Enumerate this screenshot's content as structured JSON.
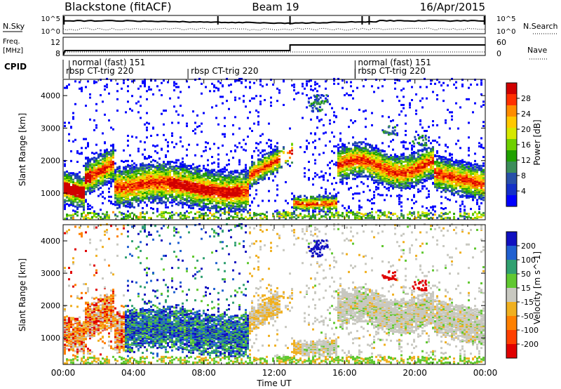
{
  "header": {
    "station": "Blackstone (fitACF)",
    "beam": "Beam 19",
    "date": "16/Apr/2015"
  },
  "status_panels": {
    "nsky_label": "N.Sky",
    "nsky_ticks": [
      "10^5",
      "10^0"
    ],
    "nsearch_label": "N.Search",
    "freq_label_line1": "Freq.",
    "freq_label_line2": "[MHz]",
    "freq_ticks": [
      "12",
      "8"
    ],
    "nave_ticks": [
      "60",
      "0"
    ],
    "nave_label": "Nave",
    "cpid_label": "CPID"
  },
  "cpid_segments": [
    {
      "start_hour": 0.0,
      "label": "rbsp CT-trig 220",
      "row": 2
    },
    {
      "start_hour": 0.35,
      "label": "normal (fast) 151",
      "row": 1
    },
    {
      "start_hour": 7.1,
      "label": "rbsp CT-trig 220",
      "row": 2
    },
    {
      "start_hour": 16.6,
      "label": "rbsp CT-trig 220",
      "row": 2
    },
    {
      "start_hour": 16.6,
      "label": "normal (fast) 151",
      "row": 1
    }
  ],
  "chart_data": [
    {
      "type": "heatmap",
      "name": "power",
      "ylabel": "Slant Range [km]",
      "ylim": [
        180,
        4500
      ],
      "yticks": [
        1000,
        2000,
        3000,
        4000
      ],
      "xlim": [
        0,
        24
      ],
      "colorbar": {
        "label": "Power [dB]",
        "ticks": [
          "28",
          "24",
          "20",
          "16",
          "12",
          "8",
          "4"
        ],
        "colors": [
          "#d00000",
          "#ff3000",
          "#ff8c00",
          "#ffc800",
          "#d6e800",
          "#6ed000",
          "#20a000",
          "#3c8d5a",
          "#2850a8",
          "#1430c8",
          "#0000ff"
        ]
      }
    },
    {
      "type": "heatmap",
      "name": "velocity",
      "ylabel": "Slant Range [km]",
      "ylim": [
        180,
        4500
      ],
      "yticks": [
        1000,
        2000,
        3000,
        4000
      ],
      "xlim": [
        0,
        24
      ],
      "colorbar": {
        "label": "Velocity [m s^-1]",
        "ticks": [
          "200",
          "100",
          "50",
          "15",
          "-15",
          "-50",
          "-100",
          "-200"
        ],
        "colors": [
          "#1010c0",
          "#2060d0",
          "#30a070",
          "#60c830",
          "#c8c8c0",
          "#f0b020",
          "#ff8000",
          "#ff4000",
          "#e00000"
        ]
      }
    }
  ],
  "x_axis": {
    "label": "Time UT",
    "ticks": [
      "00:00",
      "04:00",
      "08:00",
      "12:00",
      "16:00",
      "20:00",
      "00:00"
    ]
  }
}
